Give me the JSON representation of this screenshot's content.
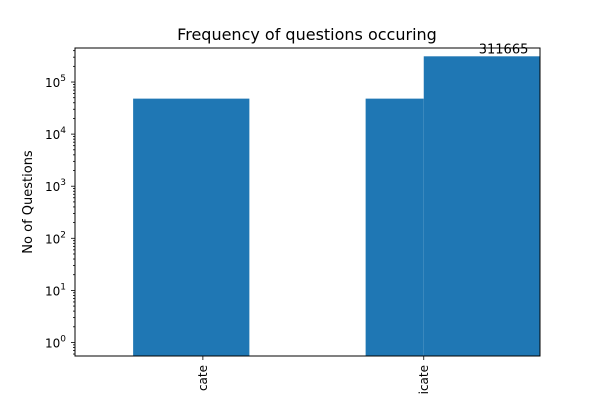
{
  "chart_data": {
    "type": "bar",
    "title": "Frequency of questions occuring",
    "xlabel": "",
    "ylabel": "No of Questions",
    "yscale": "log",
    "ylim": [
      0.55,
      450000
    ],
    "categories": [
      "cate",
      "icate"
    ],
    "bars": [
      {
        "name": "bar-1",
        "x_start": 0.4,
        "x_end": 1.4,
        "value": 48000
      },
      {
        "name": "bar-2",
        "x_start": 2.4,
        "x_end": 2.9,
        "value": 48000
      },
      {
        "name": "bar-3",
        "x_start": 2.9,
        "x_end": 3.9,
        "value": 311665
      }
    ],
    "xlim": [
      -0.1,
      3.9
    ],
    "category_positions": [
      1.0,
      2.9
    ],
    "y_major_ticks": [
      {
        "value": 1,
        "base": "10",
        "exp": "0"
      },
      {
        "value": 10,
        "base": "10",
        "exp": "1"
      },
      {
        "value": 100,
        "base": "10",
        "exp": "2"
      },
      {
        "value": 1000,
        "base": "10",
        "exp": "3"
      },
      {
        "value": 10000,
        "base": "10",
        "exp": "4"
      },
      {
        "value": 100000,
        "base": "10",
        "exp": "5"
      }
    ],
    "annotations": [
      {
        "text": "311665",
        "x": 3.8,
        "y": 311665
      }
    ],
    "colors": {
      "bar": "#1f77b4",
      "axis": "#000000"
    },
    "grid": false
  }
}
